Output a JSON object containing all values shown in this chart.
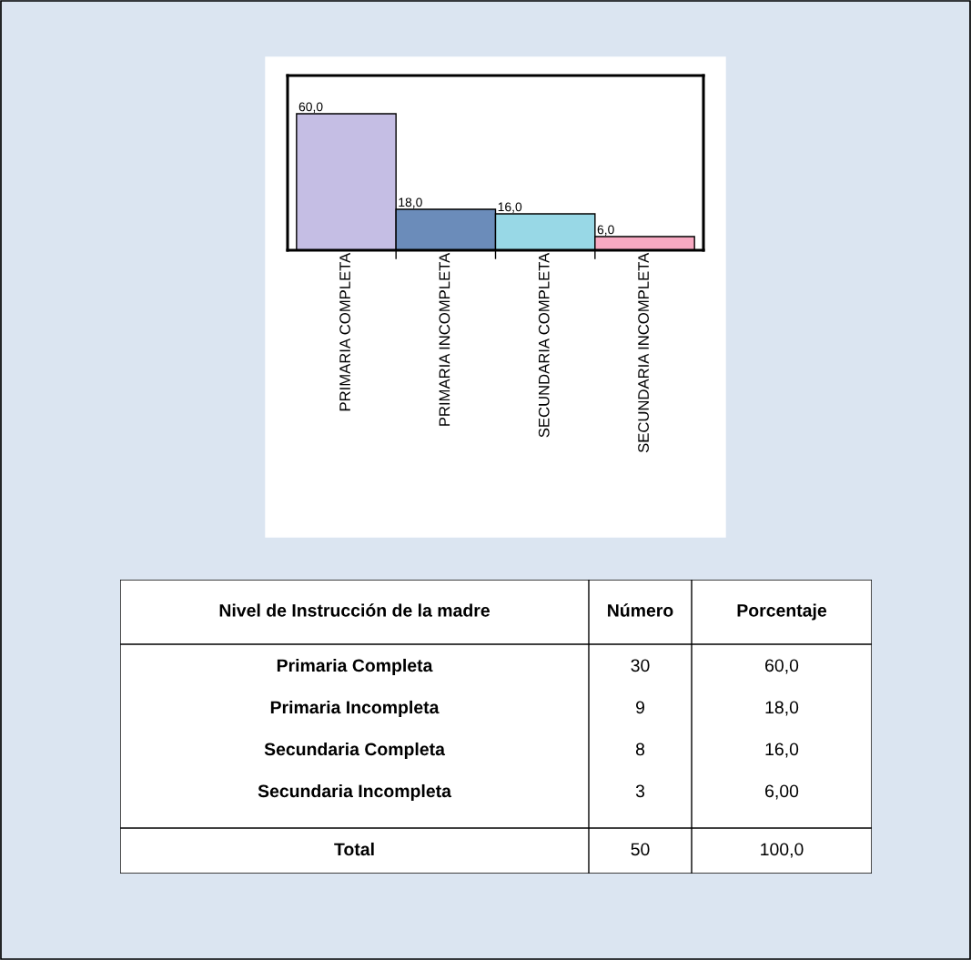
{
  "chart_data": [
    {
      "type": "bar",
      "categories": [
        "PRIMARIA COMPLETA",
        "PRIMARIA INCOMPLETA",
        "SECUNDARIA COMPLETA",
        "SECUNDARIA INCOMPLETA"
      ],
      "values": [
        60.0,
        18.0,
        16.0,
        6.0
      ],
      "value_labels": [
        "60,0",
        "18,0",
        "16,0",
        "6,0"
      ],
      "colors": [
        "#c5bee4",
        "#6b8cba",
        "#98d8e6",
        "#f8a9c2"
      ]
    },
    {
      "type": "other",
      "data_labels": true,
      "xlabel": "Nivel de Instrucción de la madre",
      "categories": [
        "Primaria Completa",
        "Primaria Incompleta",
        "Secundaria Completa",
        "Secundaria Incompleta",
        "Total"
      ],
      "series": [
        {
          "name": "Número",
          "values": [
            30,
            9,
            8,
            3,
            50
          ]
        },
        {
          "name": "Porcentaje",
          "values": [
            60.0,
            18.0,
            16.0,
            6.0,
            100.0
          ],
          "value_labels": [
            "60,0",
            "18,0",
            "16,0",
            "6,00",
            "100,0"
          ]
        }
      ]
    }
  ]
}
